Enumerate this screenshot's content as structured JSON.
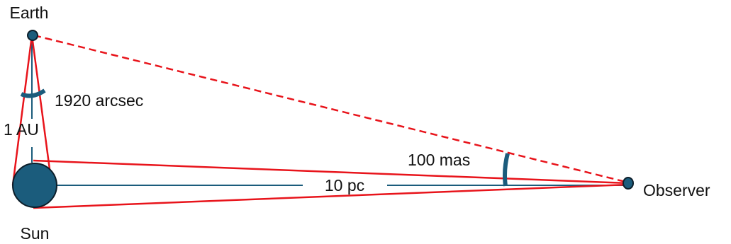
{
  "labels": {
    "earth": "Earth",
    "sun": "Sun",
    "observer": "Observer",
    "one_au": "1 AU",
    "arcsec": "1920 arcsec",
    "mas": "100 mas",
    "ten_pc": "10 pc"
  },
  "colors": {
    "red_line": "#e8141b",
    "body_fill": "#1b5c7c",
    "body_stroke": "#0c1e2a",
    "baseline": "#1b5c7c",
    "text": "#111111"
  }
}
